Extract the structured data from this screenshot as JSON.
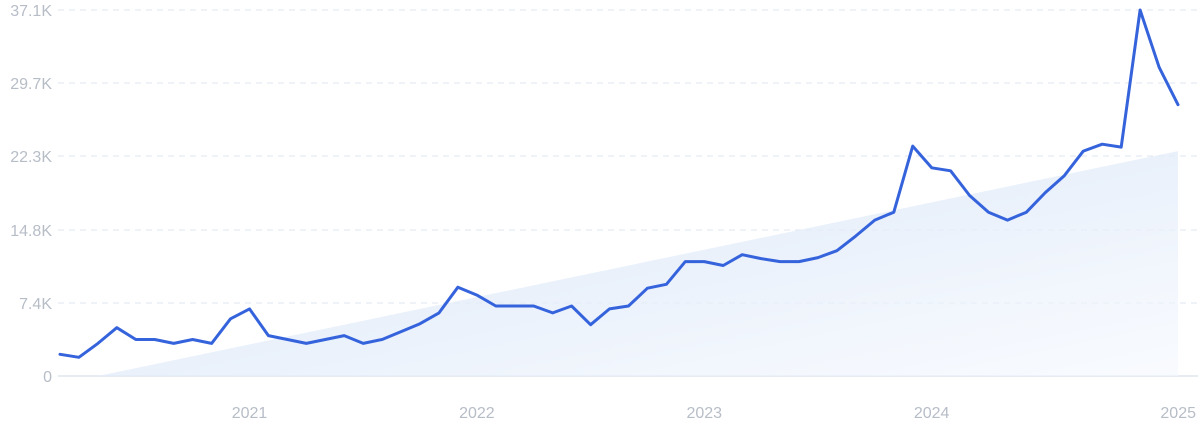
{
  "chart_data": {
    "type": "line",
    "title": "",
    "xlabel": "",
    "ylabel": "",
    "ylim": [
      0,
      37100
    ],
    "grid": true,
    "y_ticks": [
      "0",
      "7.4K",
      "14.8K",
      "22.3K",
      "29.7K",
      "37.1K"
    ],
    "y_tick_values": [
      0,
      7400,
      14800,
      22300,
      29700,
      37100
    ],
    "x_ticks": [
      "2021",
      "2022",
      "2023",
      "2024",
      "2025"
    ],
    "x": [
      "2020-03",
      "2020-04",
      "2020-05",
      "2020-06",
      "2020-07",
      "2020-08",
      "2020-09",
      "2020-10",
      "2020-11",
      "2020-12",
      "2021-01",
      "2021-02",
      "2021-03",
      "2021-04",
      "2021-05",
      "2021-06",
      "2021-07",
      "2021-08",
      "2021-09",
      "2021-10",
      "2021-11",
      "2021-12",
      "2022-01",
      "2022-02",
      "2022-03",
      "2022-04",
      "2022-05",
      "2022-06",
      "2022-07",
      "2022-08",
      "2022-09",
      "2022-10",
      "2022-11",
      "2022-12",
      "2023-01",
      "2023-02",
      "2023-03",
      "2023-04",
      "2023-05",
      "2023-06",
      "2023-07",
      "2023-08",
      "2023-09",
      "2023-10",
      "2023-11",
      "2023-12",
      "2024-01",
      "2024-02",
      "2024-03",
      "2024-04",
      "2024-05",
      "2024-06",
      "2024-07",
      "2024-08",
      "2024-09",
      "2024-10",
      "2024-11",
      "2024-12",
      "2025-01",
      "2025-02"
    ],
    "series": [
      {
        "values": [
          2200,
          1900,
          3300,
          4900,
          3700,
          3700,
          3300,
          3700,
          3300,
          5800,
          6800,
          4100,
          3700,
          3300,
          3700,
          4100,
          3300,
          3700,
          4500,
          5300,
          6400,
          9000,
          8200,
          7100,
          7100,
          7100,
          6400,
          7100,
          5200,
          6800,
          7100,
          8900,
          9300,
          11600,
          11600,
          11200,
          12300,
          11900,
          11600,
          11600,
          12000,
          12700,
          14200,
          15800,
          16600,
          23300,
          21100,
          20800,
          18300,
          16600,
          15800,
          16600,
          18600,
          20300,
          22800,
          23500,
          23200,
          37100,
          31300,
          27500
        ]
      }
    ],
    "trend": {
      "start": [
        "2020-05",
        0
      ],
      "end": [
        "2025-02",
        22800
      ]
    },
    "colors": {
      "line": "#3563dc",
      "area_top": "#c9dcf6",
      "grid": "#dfe6ef",
      "ticks": "#b7bdc7"
    }
  }
}
